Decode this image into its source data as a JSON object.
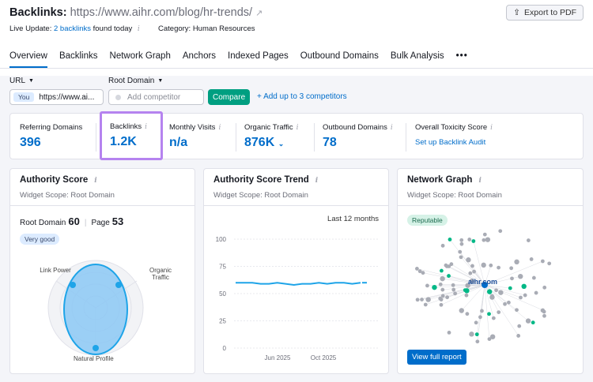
{
  "header": {
    "title_prefix": "Backlinks:",
    "title_url": "https://www.aihr.com/blog/hr-trends/",
    "export_label": "Export to PDF",
    "live_label": "Live Update:",
    "live_link": "2 backlinks",
    "live_suffix": "found today",
    "category_label": "Category: Human Resources"
  },
  "tabs": [
    "Overview",
    "Backlinks",
    "Network Graph",
    "Anchors",
    "Indexed Pages",
    "Outbound Domains",
    "Bulk Analysis",
    "•••"
  ],
  "filters": {
    "url_label": "URL",
    "root_domain_label": "Root Domain",
    "you_badge": "You",
    "url_value": "https://www.ai...",
    "competitor_placeholder": "Add competitor",
    "compare_label": "Compare",
    "add_competitors_label": "+ Add up to 3 competitors"
  },
  "metrics": {
    "referring_domains": {
      "label": "Referring Domains",
      "value": "396"
    },
    "backlinks": {
      "label": "Backlinks",
      "value": "1.2K"
    },
    "monthly_visits": {
      "label": "Monthly Visits",
      "value": "n/a"
    },
    "organic_traffic": {
      "label": "Organic Traffic",
      "value": "876K"
    },
    "outbound_domains": {
      "label": "Outbound Domains",
      "value": "78"
    },
    "toxicity": {
      "label": "Overall Toxicity Score",
      "link": "Set up Backlink Audit"
    }
  },
  "authority": {
    "title": "Authority Score",
    "scope": "Widget Scope: Root Domain",
    "root_domain_label": "Root Domain",
    "root_domain_value": "60",
    "page_label": "Page",
    "page_value": "53",
    "badge": "Very good",
    "axis_link_power": "Link Power",
    "axis_organic": "Organic Traffic",
    "axis_natural": "Natural Profile"
  },
  "trend": {
    "title": "Authority Score Trend",
    "scope": "Widget Scope: Root Domain",
    "period": "Last 12 months",
    "chart_data": {
      "type": "line",
      "yticks": [
        "100",
        "75",
        "50",
        "25",
        "0"
      ],
      "xticks": [
        "Jun 2025",
        "Oct 2025"
      ],
      "ylim": [
        0,
        100
      ],
      "series": [
        {
          "values": [
            60,
            60,
            60,
            59,
            59,
            60,
            59,
            58,
            59,
            59,
            60,
            59,
            60,
            60,
            59,
            60
          ]
        }
      ]
    }
  },
  "network": {
    "title": "Network Graph",
    "scope": "Widget Scope: Root Domain",
    "badge": "Reputable",
    "center_label": "aihr.com",
    "view_label": "View full report"
  },
  "colors": {
    "accent": "#006dca",
    "green": "#009f81",
    "highlight": "#b583ef"
  }
}
